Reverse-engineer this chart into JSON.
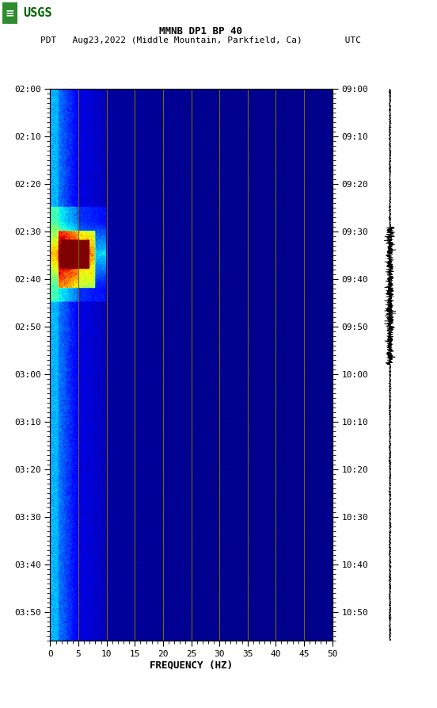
{
  "title_line1": "MMNB DP1 BP 40",
  "title_line2": "PDT   Aug23,2022 (Middle Mountain, Parkfield, Ca)        UTC",
  "xlabel": "FREQUENCY (HZ)",
  "freq_min": 0,
  "freq_max": 50,
  "left_time_labels": [
    "02:00",
    "02:10",
    "02:20",
    "02:30",
    "02:40",
    "02:50",
    "03:00",
    "03:10",
    "03:20",
    "03:30",
    "03:40",
    "03:50"
  ],
  "right_time_labels": [
    "09:00",
    "09:10",
    "09:20",
    "09:30",
    "09:40",
    "09:50",
    "10:00",
    "10:10",
    "10:20",
    "10:30",
    "10:40",
    "10:50"
  ],
  "freq_ticks": [
    0,
    5,
    10,
    15,
    20,
    25,
    30,
    35,
    40,
    45,
    50
  ],
  "vertical_lines_at": [
    5,
    10,
    15,
    20,
    25,
    30,
    35,
    40,
    45
  ],
  "n_time_steps": 600,
  "n_freq_steps": 500,
  "total_minutes": 116,
  "label_minutes": [
    0,
    10,
    20,
    30,
    40,
    50,
    60,
    70,
    80,
    90,
    100,
    110
  ],
  "seed": 42
}
